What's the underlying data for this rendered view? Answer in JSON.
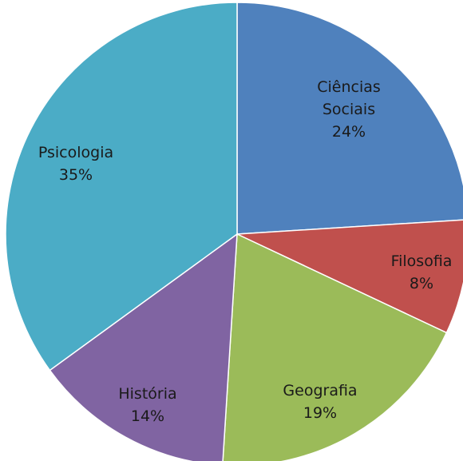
{
  "chart_data": {
    "type": "pie",
    "categories": [
      "Ciências Sociais",
      "Filosofia",
      "Geografia",
      "História",
      "Psicologia"
    ],
    "values": [
      24,
      8,
      19,
      14,
      35
    ],
    "value_labels": [
      "24%",
      "8%",
      "19%",
      "14%",
      "35%"
    ],
    "colors": [
      "#4f81bd",
      "#c0504d",
      "#9bbb59",
      "#8064a2",
      "#4bacc6"
    ]
  }
}
